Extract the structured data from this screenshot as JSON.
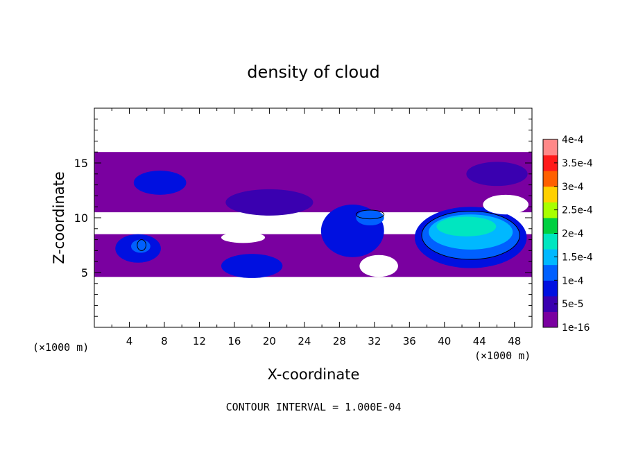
{
  "chart_data": {
    "type": "heatmap",
    "title": "density of cloud",
    "xlabel": "X-coordinate",
    "ylabel": "Z-coordinate",
    "x_unit_left": "(×1000 m)",
    "x_unit_right": "(×1000 m)",
    "xlim": [
      0,
      50
    ],
    "ylim": [
      0,
      20
    ],
    "x_ticks": [
      4,
      8,
      12,
      16,
      20,
      24,
      28,
      32,
      36,
      40,
      44,
      48
    ],
    "y_ticks": [
      5,
      10,
      15
    ],
    "footnote": "CONTOUR INTERVAL = 1.000E-04",
    "colorbar": {
      "labels": [
        "4e-4",
        "3.5e-4",
        "3e-4",
        "2.5e-4",
        "2e-4",
        "1.5e-4",
        "1e-4",
        "5e-5",
        "1e-16"
      ],
      "colors": [
        "#7a00a0",
        "#3a00b0",
        "#0010e0",
        "#0060ff",
        "#00b8ff",
        "#00e6c0",
        "#00d040",
        "#a8ff00",
        "#ffd000",
        "#ff6000",
        "#ff1a1a",
        "#ff8888"
      ]
    },
    "regions": [
      {
        "name": "upper-layer",
        "level": 0,
        "x0": 0,
        "x1": 50,
        "z0": 10.5,
        "z1": 16
      },
      {
        "name": "lower-layer",
        "level": 0,
        "x0": 0,
        "x1": 50,
        "z0": 4.6,
        "z1": 8.5
      },
      {
        "name": "blob-a",
        "level": 2,
        "cx": 7.5,
        "cz": 13.2,
        "rx": 3,
        "rz": 1.1
      },
      {
        "name": "blob-b",
        "level": 1,
        "cx": 20,
        "cz": 11.4,
        "rx": 5,
        "rz": 1.2
      },
      {
        "name": "blob-c",
        "level": 2,
        "cx": 5,
        "cz": 7.2,
        "rx": 2.6,
        "rz": 1.3
      },
      {
        "name": "blob-d",
        "level": 3,
        "cx": 5.3,
        "cz": 7.4,
        "rx": 1.1,
        "rz": 0.6
      },
      {
        "name": "blob-e",
        "level": 2,
        "cx": 18,
        "cz": 5.6,
        "rx": 3.5,
        "rz": 1.1
      },
      {
        "name": "blob-f",
        "level": 2,
        "cx": 29.5,
        "cz": 8.8,
        "rx": 3.6,
        "rz": 2.4
      },
      {
        "name": "blob-g",
        "level": 3,
        "cx": 31.5,
        "cz": 10,
        "rx": 1.6,
        "rz": 0.7
      },
      {
        "name": "blob-h",
        "level": 2,
        "cx": 43,
        "cz": 8.2,
        "rx": 6.4,
        "rz": 2.8
      },
      {
        "name": "blob-i",
        "level": 3,
        "cx": 43,
        "cz": 8.4,
        "rx": 5.6,
        "rz": 2.2
      },
      {
        "name": "blob-j",
        "level": 4,
        "cx": 43,
        "cz": 8.7,
        "rx": 4.8,
        "rz": 1.6
      },
      {
        "name": "blob-k",
        "level": 5,
        "cx": 42.5,
        "cz": 9.2,
        "rx": 3.4,
        "rz": 0.9
      },
      {
        "name": "blob-l",
        "level": 1,
        "cx": 46,
        "cz": 14,
        "rx": 3.5,
        "rz": 1.1
      }
    ],
    "gaps": [
      {
        "cx": 5,
        "cz": 9.5,
        "rx": 4.5,
        "rz": 0.8
      },
      {
        "cx": 17,
        "cz": 8.2,
        "rx": 2.5,
        "rz": 0.5
      },
      {
        "cx": 32.5,
        "cz": 5.6,
        "rx": 2.2,
        "rz": 1.0
      },
      {
        "cx": 47,
        "cz": 11.2,
        "rx": 2.6,
        "rz": 0.9
      }
    ],
    "contours": [
      {
        "name": "contour-large",
        "cx": 43,
        "cz": 8.4,
        "rx": 5.6,
        "rz": 2.2
      },
      {
        "name": "contour-mid",
        "cx": 31.5,
        "cz": 10.3,
        "rx": 1.6,
        "rz": 0.4
      },
      {
        "name": "contour-small",
        "cx": 5.4,
        "cz": 7.5,
        "rx": 0.5,
        "rz": 0.5
      }
    ]
  }
}
